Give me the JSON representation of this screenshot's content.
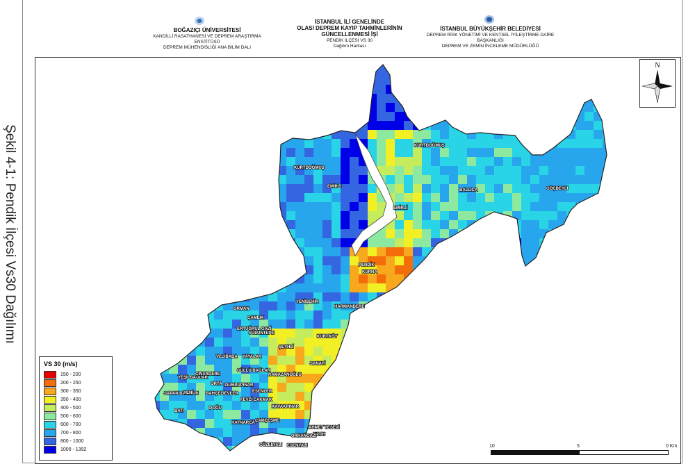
{
  "side_caption": "Şekil 4-1: Pendik İlçesi Vs30 Dağılımı",
  "header": {
    "left": {
      "line1": "BOĞAZIÇI ÜNİVERSİTESİ",
      "line2": "KANDİLLİ RASATHANESİ VE DEPREM ARAŞTIRMA ENSTİTÜSÜ",
      "line3": "DEPREM MÜHENDİSLİĞİ ANA BİLİM DALI"
    },
    "center": {
      "line1": "İSTANBUL İLİ GENELİNDE",
      "line2": "OLASI DEPREM KAYIP TAHMİNLERİNİN",
      "line3": "GÜNCELLENMESİ İŞİ",
      "line4": "PENDİK İLÇESİ VS 30",
      "line5": "Dağılım Haritası"
    },
    "right": {
      "line1": "İSTANBUL BÜYÜKŞEHİR BELEDİYESİ",
      "line2": "DEPREM RİSK YÖNETİMİ VE KENTSEL İYİLEŞTİRME DAİRE BAŞKANLIĞI",
      "line3": "DEPREM VE ZEMİN İNCELEME MÜDÜRLÜĞÜ"
    }
  },
  "north_label": "N",
  "legend": {
    "title": "VS 30 (m/s)",
    "items": [
      {
        "label": "150 - 200",
        "color": "#e60000"
      },
      {
        "label": "200 - 250",
        "color": "#f46d0b"
      },
      {
        "label": "300 - 350",
        "color": "#f7a81d"
      },
      {
        "label": "350 - 400",
        "color": "#f2ef24"
      },
      {
        "label": "400 - 500",
        "color": "#c4ec5c"
      },
      {
        "label": "500 - 600",
        "color": "#8ee9a0"
      },
      {
        "label": "600 - 700",
        "color": "#29d4e6"
      },
      {
        "label": "700 - 800",
        "color": "#27a6ee"
      },
      {
        "label": "800 - 1000",
        "color": "#3366e0"
      },
      {
        "label": "1000 - 1392",
        "color": "#0000e8"
      }
    ]
  },
  "scale": {
    "left": "10",
    "mid": "5",
    "right": "0 Km"
  },
  "places": [
    "KURTDOĞMUŞ",
    "KURTDOĞMUŞ",
    "EMİRLİ",
    "EMİRLİ",
    "BALLICA",
    "GÖÇBEYLİ",
    "PENDİK",
    "KURNA",
    "YENİŞEHİR",
    "HARMANDERE",
    "ORMAN",
    "ÇAMLIK",
    "ERTUĞRUL GAZİ",
    "SULUNTEPE",
    "KURTKÖY",
    "ŞEYHLİ",
    "YAYALAR",
    "VELİBABA",
    "SANAYİ",
    "GÜLLÜ BAĞLAR",
    "RAMAZANOĞLU",
    "YEŞİLBAĞLAR",
    "ÇINARDERE",
    "ORTA",
    "DUMLUPINAR",
    "SAPAN BAĞLARI",
    "YENİ",
    "BAHÇELİEVLER",
    "ESENLER",
    "FEVZİ ÇAKMAK",
    "KAVAKPINAR",
    "BATI",
    "DOĞU",
    "KAYNARCA",
    "ÇAMÇEŞME",
    "AHMET YESEVİ",
    "YATIH",
    "ORHANGAZİ",
    "GÜZELYALI",
    "ESENYALI"
  ]
}
